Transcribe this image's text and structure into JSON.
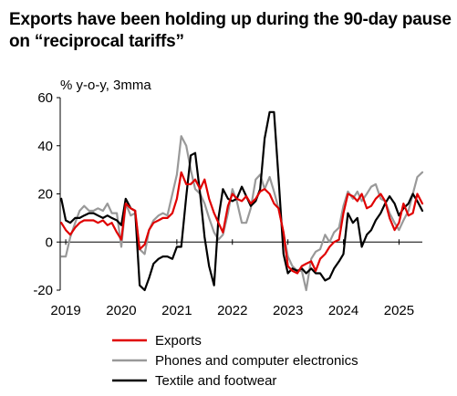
{
  "title": "Exports have been holding up during the 90-day pause on “reciprocal tariffs”",
  "chart_data": {
    "type": "line",
    "ylabel": "% y-o-y, 3mma",
    "ylim": [
      -20,
      60
    ],
    "yticks": [
      -20,
      0,
      20,
      40,
      60
    ],
    "xticks": [
      "2019",
      "2020",
      "2021",
      "2022",
      "2023",
      "2024",
      "2025"
    ],
    "xlim": [
      2018.9,
      2025.42
    ],
    "series": [
      {
        "name": "Exports",
        "color": "#e00000",
        "x": [
          2018.92,
          2019.0,
          2019.08,
          2019.17,
          2019.25,
          2019.33,
          2019.42,
          2019.5,
          2019.58,
          2019.67,
          2019.75,
          2019.83,
          2019.92,
          2020.0,
          2020.08,
          2020.17,
          2020.25,
          2020.33,
          2020.42,
          2020.5,
          2020.58,
          2020.67,
          2020.75,
          2020.83,
          2020.92,
          2021.0,
          2021.08,
          2021.17,
          2021.25,
          2021.33,
          2021.42,
          2021.5,
          2021.58,
          2021.67,
          2021.75,
          2021.83,
          2021.92,
          2022.0,
          2022.08,
          2022.17,
          2022.25,
          2022.33,
          2022.42,
          2022.5,
          2022.58,
          2022.67,
          2022.75,
          2022.83,
          2022.92,
          2023.0,
          2023.08,
          2023.17,
          2023.25,
          2023.33,
          2023.42,
          2023.5,
          2023.58,
          2023.67,
          2023.75,
          2023.83,
          2023.92,
          2024.0,
          2024.08,
          2024.17,
          2024.25,
          2024.33,
          2024.42,
          2024.5,
          2024.58,
          2024.67,
          2024.75,
          2024.83,
          2024.92,
          2025.0,
          2025.08,
          2025.17,
          2025.25,
          2025.33,
          2025.42
        ],
        "values": [
          8,
          5,
          3,
          6,
          8,
          9,
          9,
          9,
          8,
          9,
          7,
          8,
          4,
          1,
          16,
          14,
          13,
          -3,
          -1,
          5,
          8,
          9,
          10,
          10,
          12,
          18,
          29,
          24,
          24,
          26,
          22,
          26,
          18,
          12,
          8,
          4,
          15,
          20,
          18,
          17,
          19,
          16,
          18,
          21,
          22,
          20,
          16,
          14,
          4,
          -10,
          -12,
          -13,
          -10,
          -9,
          -8,
          -12,
          -7,
          -5,
          -2,
          0,
          1,
          12,
          20,
          19,
          17,
          20,
          14,
          15,
          18,
          20,
          17,
          10,
          5,
          8,
          16,
          11,
          12,
          20,
          16
        ]
      },
      {
        "name": "Phones and computer electronics",
        "color": "#999999",
        "x": [
          2018.92,
          2019.0,
          2019.08,
          2019.17,
          2019.25,
          2019.33,
          2019.42,
          2019.5,
          2019.58,
          2019.67,
          2019.75,
          2019.83,
          2019.92,
          2020.0,
          2020.08,
          2020.17,
          2020.25,
          2020.33,
          2020.42,
          2020.5,
          2020.58,
          2020.67,
          2020.75,
          2020.83,
          2020.92,
          2021.0,
          2021.08,
          2021.17,
          2021.25,
          2021.33,
          2021.42,
          2021.5,
          2021.58,
          2021.67,
          2021.75,
          2021.83,
          2021.92,
          2022.0,
          2022.08,
          2022.17,
          2022.25,
          2022.33,
          2022.42,
          2022.5,
          2022.58,
          2022.67,
          2022.75,
          2022.83,
          2022.92,
          2023.0,
          2023.08,
          2023.17,
          2023.25,
          2023.33,
          2023.42,
          2023.5,
          2023.58,
          2023.67,
          2023.75,
          2023.83,
          2023.92,
          2024.0,
          2024.08,
          2024.17,
          2024.25,
          2024.33,
          2024.42,
          2024.5,
          2024.58,
          2024.67,
          2024.75,
          2024.83,
          2024.92,
          2025.0,
          2025.08,
          2025.17,
          2025.25,
          2025.33,
          2025.42
        ],
        "values": [
          -6,
          -6,
          2,
          8,
          13,
          15,
          13,
          13,
          14,
          13,
          16,
          12,
          12,
          -2,
          16,
          11,
          12,
          -3,
          -5,
          5,
          9,
          11,
          12,
          11,
          20,
          28,
          44,
          40,
          30,
          22,
          20,
          16,
          10,
          4,
          1,
          3,
          12,
          22,
          17,
          8,
          8,
          14,
          26,
          28,
          22,
          27,
          21,
          14,
          4,
          -6,
          -10,
          -12,
          -12,
          -20,
          -7,
          -4,
          -3,
          3,
          0,
          4,
          6,
          15,
          21,
          18,
          21,
          17,
          20,
          23,
          24,
          18,
          17,
          12,
          8,
          5,
          9,
          13,
          20,
          27,
          29
        ]
      },
      {
        "name": "Textile and footwear",
        "color": "#000000",
        "x": [
          2018.92,
          2019.0,
          2019.08,
          2019.17,
          2019.25,
          2019.33,
          2019.42,
          2019.5,
          2019.58,
          2019.67,
          2019.75,
          2019.83,
          2019.92,
          2020.0,
          2020.08,
          2020.17,
          2020.25,
          2020.33,
          2020.42,
          2020.5,
          2020.58,
          2020.67,
          2020.75,
          2020.83,
          2020.92,
          2021.0,
          2021.08,
          2021.17,
          2021.25,
          2021.33,
          2021.42,
          2021.5,
          2021.58,
          2021.67,
          2021.75,
          2021.83,
          2021.92,
          2022.0,
          2022.08,
          2022.17,
          2022.25,
          2022.33,
          2022.42,
          2022.5,
          2022.58,
          2022.67,
          2022.75,
          2022.83,
          2022.92,
          2023.0,
          2023.08,
          2023.17,
          2023.25,
          2023.33,
          2023.42,
          2023.5,
          2023.58,
          2023.67,
          2023.75,
          2023.83,
          2023.92,
          2024.0,
          2024.08,
          2024.17,
          2024.25,
          2024.33,
          2024.42,
          2024.5,
          2024.58,
          2024.67,
          2024.75,
          2024.83,
          2024.92,
          2025.0,
          2025.08,
          2025.17,
          2025.25,
          2025.33,
          2025.42
        ],
        "values": [
          18,
          9,
          8,
          10,
          10,
          11,
          12,
          12,
          11,
          10,
          11,
          10,
          9,
          7,
          18,
          14,
          13,
          -18,
          -20,
          -15,
          -9,
          -7,
          -6,
          -6,
          -7,
          -2,
          -2,
          19,
          36,
          37,
          20,
          2,
          -10,
          -18,
          10,
          22,
          18,
          17,
          18,
          23,
          19,
          15,
          17,
          22,
          43,
          54,
          54,
          27,
          -5,
          -13,
          -11,
          -12,
          -11,
          -13,
          -11,
          -13,
          -13,
          -16,
          -15,
          -11,
          -8,
          -5,
          12,
          8,
          10,
          -2,
          3,
          5,
          9,
          12,
          16,
          19,
          16,
          11,
          14,
          16,
          20,
          17,
          13
        ]
      }
    ],
    "legend_position": "bottom"
  }
}
